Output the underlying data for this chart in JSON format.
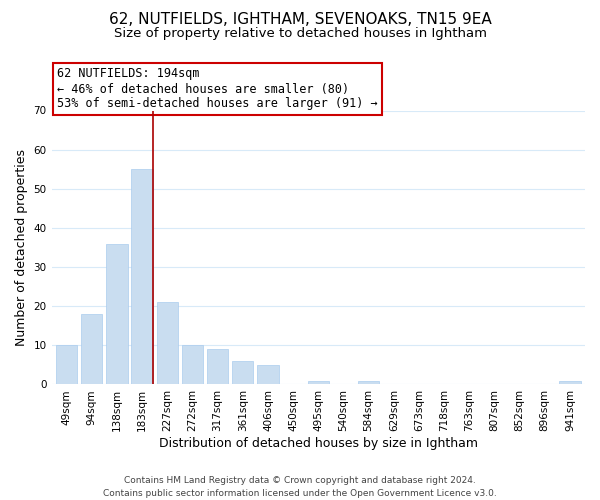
{
  "title": "62, NUTFIELDS, IGHTHAM, SEVENOAKS, TN15 9EA",
  "subtitle": "Size of property relative to detached houses in Ightham",
  "xlabel": "Distribution of detached houses by size in Ightham",
  "ylabel": "Number of detached properties",
  "bar_labels": [
    "49sqm",
    "94sqm",
    "138sqm",
    "183sqm",
    "227sqm",
    "272sqm",
    "317sqm",
    "361sqm",
    "406sqm",
    "450sqm",
    "495sqm",
    "540sqm",
    "584sqm",
    "629sqm",
    "673sqm",
    "718sqm",
    "763sqm",
    "807sqm",
    "852sqm",
    "896sqm",
    "941sqm"
  ],
  "bar_values": [
    10,
    18,
    36,
    55,
    21,
    10,
    9,
    6,
    5,
    0,
    1,
    0,
    1,
    0,
    0,
    0,
    0,
    0,
    0,
    0,
    1
  ],
  "bar_color": "#c9ddf0",
  "vline_bar_index": 3,
  "vline_color": "#aa0000",
  "ylim": [
    0,
    70
  ],
  "yticks": [
    0,
    10,
    20,
    30,
    40,
    50,
    60,
    70
  ],
  "annotation_line1": "62 NUTFIELDS: 194sqm",
  "annotation_line2": "← 46% of detached houses are smaller (80)",
  "annotation_line3": "53% of semi-detached houses are larger (91) →",
  "annotation_box_facecolor": "#ffffff",
  "annotation_box_edgecolor": "#cc0000",
  "footer_line1": "Contains HM Land Registry data © Crown copyright and database right 2024.",
  "footer_line2": "Contains public sector information licensed under the Open Government Licence v3.0.",
  "title_fontsize": 11,
  "subtitle_fontsize": 9.5,
  "axis_label_fontsize": 9,
  "tick_fontsize": 7.5,
  "annotation_fontsize": 8.5,
  "footer_fontsize": 6.5,
  "grid_color": "#d8eaf8"
}
